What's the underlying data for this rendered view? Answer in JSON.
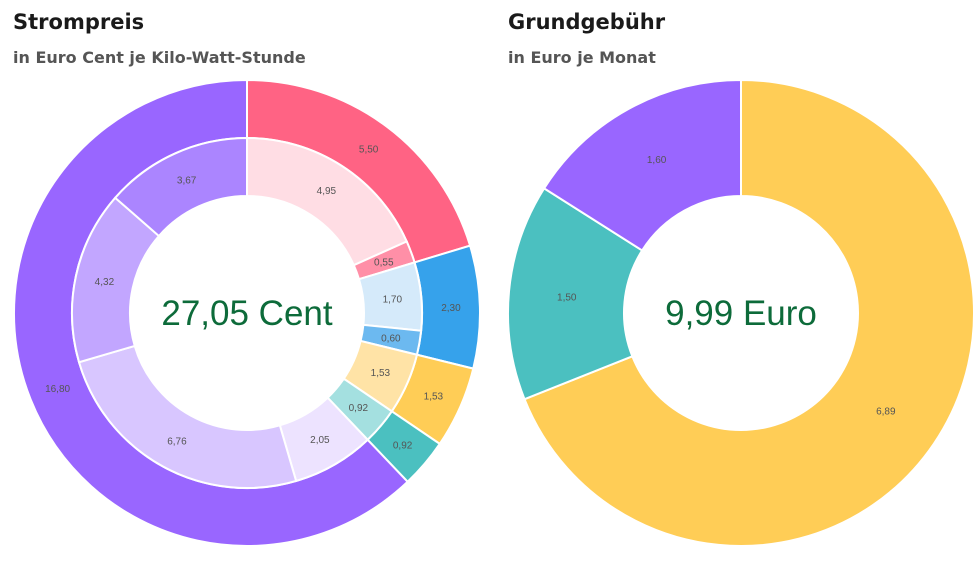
{
  "chart_data": [
    {
      "type": "donut",
      "title": "Strompreis",
      "subtitle": "in Euro Cent je Kilo-Watt-Stunde",
      "center_label": "27,05 Cent",
      "total": 27.05,
      "outer_ring": [
        {
          "value": 5.5,
          "label": "5,50",
          "color": "#ff6384"
        },
        {
          "value": 2.3,
          "label": "2,30",
          "color": "#36a2eb"
        },
        {
          "value": 1.53,
          "label": "1,53",
          "color": "#ffcd56"
        },
        {
          "value": 0.92,
          "label": "0,92",
          "color": "#4bc0c0"
        },
        {
          "value": 16.8,
          "label": "16,80",
          "color": "#9966ff"
        }
      ],
      "inner_ring": [
        {
          "value": 4.95,
          "label": "4,95",
          "color": "#ffdde4"
        },
        {
          "value": 0.55,
          "label": "0,55",
          "color": "#ff8fa7"
        },
        {
          "value": 1.7,
          "label": "1,70",
          "color": "#d5eafa"
        },
        {
          "value": 0.6,
          "label": "0,60",
          "color": "#6cb9f0"
        },
        {
          "value": 1.53,
          "label": "1,53",
          "color": "#ffe3a6"
        },
        {
          "value": 0.92,
          "label": "0,92",
          "color": "#a4e0e0"
        },
        {
          "value": 2.05,
          "label": "2,05",
          "color": "#ede3ff"
        },
        {
          "value": 6.76,
          "label": "6,76",
          "color": "#d8c6ff"
        },
        {
          "value": 4.32,
          "label": "4,32",
          "color": "#c2a6ff"
        },
        {
          "value": 3.67,
          "label": "3,67",
          "color": "#ab85ff"
        }
      ]
    },
    {
      "type": "donut",
      "title": "Grundgebühr",
      "subtitle": "in Euro je Monat",
      "center_label": "9,99 Euro",
      "total": 9.99,
      "ring": [
        {
          "value": 6.89,
          "label": "6,89",
          "color": "#ffcd56"
        },
        {
          "value": 1.5,
          "label": "1,50",
          "color": "#4bc0c0"
        },
        {
          "value": 1.6,
          "label": "1,60",
          "color": "#9966ff"
        }
      ]
    }
  ]
}
